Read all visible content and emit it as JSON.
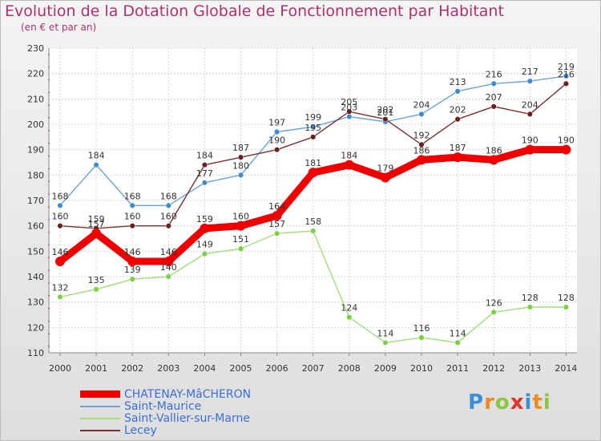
{
  "title": "Evolution de la Dotation Globale de Fonctionnement par Habitant",
  "subtitle": "(en € et par an)",
  "logo": {
    "letters": [
      "P",
      "r",
      "o",
      "x",
      "i",
      "t",
      "i"
    ],
    "colors": [
      "#3b8fd9",
      "#f08a1e",
      "#8cc63f",
      "#e2332a",
      "#3b8fd9",
      "#f08a1e",
      "#8cc63f"
    ]
  },
  "chart_data": {
    "type": "line",
    "x": [
      "2000",
      "2001",
      "2002",
      "2003",
      "2004",
      "2005",
      "2006",
      "2007",
      "2008",
      "2009",
      "2010",
      "2011",
      "2012",
      "2013",
      "2014"
    ],
    "ylim": [
      110,
      230
    ],
    "yticks": [
      "110",
      "120",
      "130",
      "140",
      "150",
      "160",
      "170",
      "180",
      "190",
      "200",
      "210",
      "220",
      "230"
    ],
    "grid": true,
    "legend_position": "bottom-left",
    "series": [
      {
        "name": "CHATENAY-MâCHERON",
        "color": "#ee0000",
        "weight": "bold",
        "values": [
          146,
          157,
          146,
          146,
          159,
          160,
          164,
          181,
          184,
          179,
          186,
          187,
          186,
          190,
          190
        ]
      },
      {
        "name": "Saint-Maurice",
        "color": "#6aa3d8",
        "marker": "#3d8bcf",
        "weight": "thin",
        "values": [
          168,
          184,
          168,
          168,
          177,
          180,
          197,
          199,
          203,
          201,
          204,
          213,
          216,
          217,
          219
        ]
      },
      {
        "name": "Saint-Vallier-sur-Marne",
        "color": "#a3dc7a",
        "marker": "#7ccf45",
        "weight": "thin",
        "values": [
          132,
          135,
          139,
          140,
          149,
          151,
          157,
          158,
          124,
          114,
          116,
          114,
          126,
          128,
          128
        ]
      },
      {
        "name": "Lecey",
        "color": "#7a3030",
        "marker": "#6a1f1f",
        "weight": "thin",
        "values": [
          160,
          159,
          160,
          160,
          184,
          187,
          190,
          195,
          205,
          202,
          192,
          202,
          207,
          204,
          216
        ]
      }
    ]
  }
}
